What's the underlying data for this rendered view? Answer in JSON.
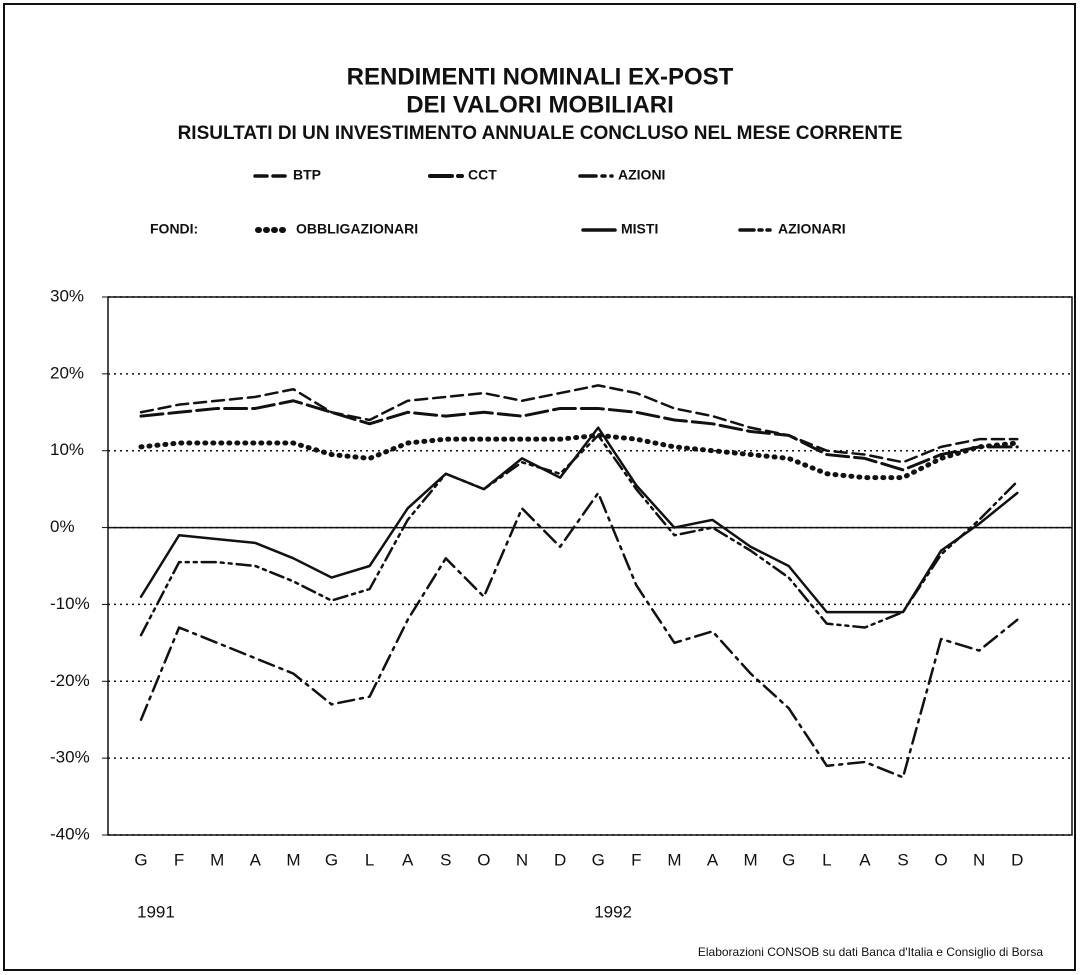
{
  "chart_data": {
    "type": "line",
    "title": "RENDIMENTI NOMINALI EX-POST",
    "title_line2": "DEI VALORI MOBILIARI",
    "subtitle": "RISULTATI DI UN INVESTIMENTO ANNUALE CONCLUSO NEL MESE CORRENTE",
    "legend_group_label": "FONDI:",
    "categories": [
      "G",
      "F",
      "M",
      "A",
      "M",
      "G",
      "L",
      "A",
      "S",
      "O",
      "N",
      "D",
      "G",
      "F",
      "M",
      "A",
      "M",
      "G",
      "L",
      "A",
      "S",
      "O",
      "N",
      "D"
    ],
    "year_labels": [
      "1991",
      null,
      null,
      null,
      null,
      null,
      null,
      null,
      null,
      null,
      null,
      null,
      "1992",
      null,
      null,
      null,
      null,
      null,
      null,
      null,
      null,
      null,
      null,
      null
    ],
    "series": [
      {
        "name": "BTP",
        "color": "#111111",
        "style": "dashed",
        "values": [
          15,
          16,
          16.5,
          17,
          18,
          15,
          14,
          16.5,
          17,
          17.5,
          16.5,
          17.5,
          18.5,
          17.5,
          15.5,
          14.5,
          13,
          12,
          10,
          9.5,
          8.5,
          10.5,
          11.5,
          11.5
        ]
      },
      {
        "name": "CCT",
        "color": "#111111",
        "style": "longdash",
        "values": [
          14.5,
          15,
          15.5,
          15.5,
          16.5,
          15,
          13.5,
          15,
          14.5,
          15,
          14.5,
          15.5,
          15.5,
          15,
          14,
          13.5,
          12.5,
          12,
          9.5,
          9,
          7.5,
          9.5,
          10.5,
          10.5
        ]
      },
      {
        "name": "AZIONI",
        "color": "#111111",
        "style": "dashdot",
        "values": [
          -25,
          -13,
          -15,
          -17,
          -19,
          -23,
          -22,
          -12,
          -4,
          -9,
          2.5,
          -2.5,
          4.5,
          -7.5,
          -15,
          -13.5,
          -19,
          -23.5,
          -31,
          -30.5,
          -32.5,
          -14.5,
          -16,
          -12
        ]
      },
      {
        "name": "OBBLIGAZIONARI",
        "color": "#111111",
        "style": "dotted",
        "values": [
          10.5,
          11,
          11,
          11,
          11,
          9.5,
          9,
          11,
          11.5,
          11.5,
          11.5,
          11.5,
          12,
          11.5,
          10.5,
          10,
          9.5,
          9,
          7,
          6.5,
          6.5,
          9,
          10.5,
          11
        ]
      },
      {
        "name": "MISTI",
        "color": "#111111",
        "style": "solid",
        "values": [
          -9,
          -1,
          -1.5,
          -2,
          -4,
          -6.5,
          -5,
          2.5,
          7,
          5,
          9,
          6.5,
          13,
          5.5,
          0,
          1,
          -2.5,
          -5,
          -11,
          -11,
          -11,
          -3,
          0.5,
          4.5
        ]
      },
      {
        "name": "AZIONARI",
        "color": "#111111",
        "style": "dashdotdot",
        "values": [
          -14,
          -4.5,
          -4.5,
          -5,
          -7,
          -9.5,
          -8,
          1,
          7,
          5,
          8.5,
          7,
          12,
          5,
          -1,
          0,
          -3,
          -6.5,
          -12.5,
          -13,
          -11,
          -3.5,
          1,
          6
        ]
      }
    ],
    "ylim": [
      -40,
      30
    ],
    "yticks": [
      {
        "value": 30,
        "label": "30%"
      },
      {
        "value": 20,
        "label": "20%"
      },
      {
        "value": 10,
        "label": "10%"
      },
      {
        "value": 0,
        "label": "0%"
      },
      {
        "value": -10,
        "label": "-10%"
      },
      {
        "value": -20,
        "label": "-20%"
      },
      {
        "value": -30,
        "label": "-30%"
      },
      {
        "value": -40,
        "label": "-40%"
      }
    ],
    "grid": true,
    "source": "Elaborazioni  CONSOB su dati Banca d'Italia e Consiglio di Borsa"
  }
}
